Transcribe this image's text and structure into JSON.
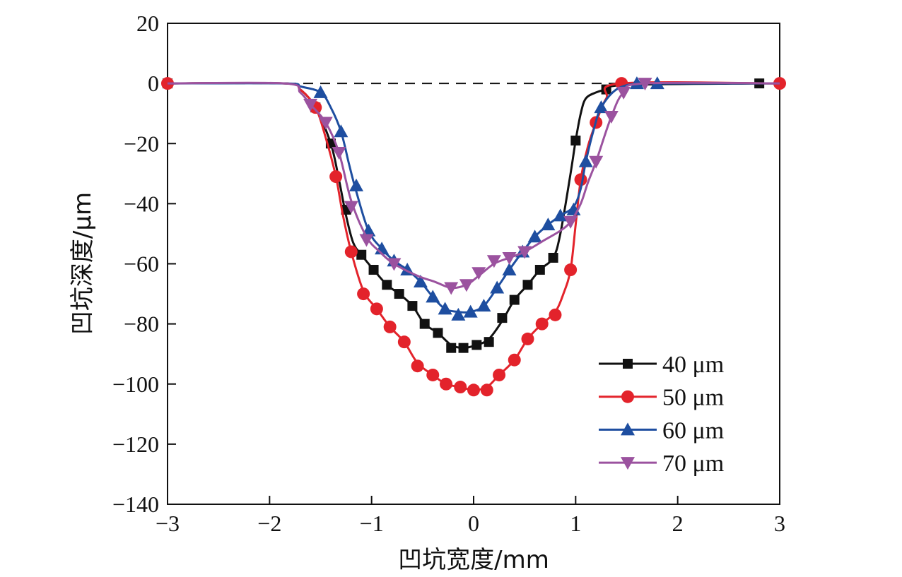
{
  "chart_data": {
    "type": "line",
    "xlabel": "凹坑宽度/mm",
    "ylabel": "凹坑深度/μm",
    "xlim": [
      -3,
      3
    ],
    "ylim": [
      -140,
      20
    ],
    "xticks": [
      -3,
      -2,
      -1,
      0,
      1,
      2,
      3
    ],
    "yticks": [
      20,
      0,
      -20,
      -40,
      -60,
      -80,
      -100,
      -120,
      -140
    ],
    "xtick_labels": [
      "−3",
      "−2",
      "−1",
      "0",
      "1",
      "2",
      "3"
    ],
    "ytick_labels": [
      "20",
      "0",
      "−20",
      "−40",
      "−60",
      "−80",
      "−100",
      "−120",
      "−140"
    ],
    "reference_line": {
      "y": 0,
      "style": "dashed"
    },
    "legend_position": "bottom-right",
    "series": [
      {
        "name": "40 μm",
        "color": "#111111",
        "marker": "square",
        "x": [
          -3.0,
          -1.55,
          -1.4,
          -1.25,
          -1.1,
          -0.98,
          -0.85,
          -0.73,
          -0.6,
          -0.48,
          -0.35,
          -0.22,
          -0.1,
          0.03,
          0.15,
          0.28,
          0.4,
          0.53,
          0.65,
          0.78,
          1.0,
          1.3,
          2.8
        ],
        "y": [
          0,
          -8,
          -20,
          -42,
          -57,
          -62,
          -67,
          -70,
          -74,
          -80,
          -83,
          -88,
          -88,
          -87,
          -86,
          -78,
          -72,
          -67,
          -62,
          -58,
          -19,
          -2,
          0
        ],
        "line_x": [
          -3.0,
          -1.85,
          -1.7,
          -1.55,
          -1.4,
          -1.32,
          -1.25,
          -1.18,
          -1.1,
          -0.98,
          -0.85,
          -0.73,
          -0.6,
          -0.48,
          -0.35,
          -0.22,
          -0.1,
          0.03,
          0.15,
          0.28,
          0.4,
          0.53,
          0.65,
          0.78,
          0.85,
          0.95,
          1.0,
          1.05,
          1.1,
          1.2,
          1.3,
          1.5,
          2.8,
          3.0
        ],
        "line_y": [
          0,
          0,
          -2,
          -8,
          -20,
          -32,
          -44,
          -53,
          -57,
          -62,
          -67,
          -70,
          -74,
          -80,
          -83,
          -87,
          -88,
          -87,
          -85,
          -79,
          -72,
          -67,
          -62,
          -58,
          -50,
          -30,
          -19,
          -10,
          -5,
          -3,
          -2,
          -0.5,
          0,
          0
        ]
      },
      {
        "name": "50 μm",
        "color": "#e3232b",
        "marker": "circle",
        "x": [
          -3.0,
          -1.55,
          -1.35,
          -1.2,
          -1.08,
          -0.95,
          -0.82,
          -0.68,
          -0.55,
          -0.4,
          -0.27,
          -0.13,
          0.0,
          0.13,
          0.25,
          0.4,
          0.53,
          0.67,
          0.8,
          0.95,
          1.05,
          1.2,
          1.45,
          3.0
        ],
        "y": [
          0,
          -8,
          -31,
          -56,
          -70,
          -75,
          -81,
          -86,
          -94,
          -97,
          -100,
          -101,
          -102,
          -102,
          -97,
          -92,
          -85,
          -80,
          -77,
          -62,
          -32,
          -13,
          0,
          0
        ],
        "line_x": [
          -3.0,
          -1.85,
          -1.7,
          -1.55,
          -1.45,
          -1.35,
          -1.28,
          -1.2,
          -1.08,
          -0.95,
          -0.82,
          -0.68,
          -0.55,
          -0.4,
          -0.27,
          -0.13,
          0.0,
          0.13,
          0.25,
          0.4,
          0.53,
          0.67,
          0.8,
          0.88,
          0.95,
          1.0,
          1.05,
          1.12,
          1.2,
          1.3,
          1.45,
          3.0
        ],
        "line_y": [
          0,
          0,
          -2,
          -8,
          -18,
          -31,
          -44,
          -56,
          -69,
          -75,
          -81,
          -86,
          -93,
          -97,
          -100,
          -101,
          -102,
          -101,
          -97,
          -92,
          -85,
          -80,
          -76,
          -70,
          -62,
          -47,
          -32,
          -21,
          -13,
          -5,
          0,
          0
        ]
      },
      {
        "name": "60 μm",
        "color": "#1e4ea0",
        "marker": "triangle-up",
        "x": [
          -1.5,
          -1.3,
          -1.15,
          -1.03,
          -0.9,
          -0.78,
          -0.65,
          -0.52,
          -0.4,
          -0.28,
          -0.15,
          -0.03,
          0.1,
          0.23,
          0.35,
          0.48,
          0.6,
          0.73,
          0.85,
          0.98,
          1.1,
          1.25,
          1.6,
          1.8
        ],
        "y": [
          -3,
          -16,
          -34,
          -49,
          -55,
          -59,
          -62,
          -66,
          -71,
          -75,
          -77,
          -76,
          -74,
          -68,
          -62,
          -56,
          -51,
          -47,
          -44,
          -42,
          -26,
          -8,
          0,
          0
        ],
        "line_x": [
          -3.0,
          -1.85,
          -1.7,
          -1.5,
          -1.4,
          -1.3,
          -1.22,
          -1.15,
          -1.03,
          -0.9,
          -0.78,
          -0.65,
          -0.52,
          -0.4,
          -0.28,
          -0.15,
          -0.03,
          0.1,
          0.23,
          0.35,
          0.48,
          0.6,
          0.73,
          0.85,
          0.98,
          1.05,
          1.1,
          1.18,
          1.25,
          1.4,
          1.6,
          1.8,
          3.0
        ],
        "line_y": [
          0,
          0,
          -1,
          -3,
          -8,
          -16,
          -27,
          -36,
          -49,
          -55,
          -59,
          -62,
          -66,
          -71,
          -75,
          -76,
          -76,
          -74,
          -68,
          -62,
          -56,
          -51,
          -47,
          -44,
          -41,
          -35,
          -26,
          -15,
          -8,
          -2,
          0,
          0,
          0
        ]
      },
      {
        "name": "70 μm",
        "color": "#9b529f",
        "marker": "triangle-down",
        "x": [
          -1.6,
          -1.45,
          -1.32,
          -1.2,
          -1.05,
          -0.78,
          -0.22,
          -0.07,
          0.05,
          0.2,
          0.35,
          0.5,
          0.95,
          1.2,
          1.35,
          1.47,
          1.68
        ],
        "y": [
          -7,
          -13,
          -23,
          -41,
          -52,
          -60,
          -68,
          -67,
          -63,
          -59,
          -58,
          -56,
          -46,
          -26,
          -11,
          -3,
          0
        ],
        "line_x": [
          -3.0,
          -1.85,
          -1.7,
          -1.6,
          -1.45,
          -1.32,
          -1.2,
          -1.05,
          -0.92,
          -0.78,
          -0.55,
          -0.38,
          -0.22,
          -0.07,
          0.05,
          0.2,
          0.35,
          0.5,
          0.7,
          0.85,
          0.95,
          1.05,
          1.12,
          1.2,
          1.35,
          1.47,
          1.68,
          3.0
        ],
        "line_y": [
          0,
          0,
          -3,
          -7,
          -13,
          -23,
          -39,
          -51,
          -56,
          -60,
          -64,
          -66,
          -68,
          -67,
          -64,
          -60,
          -58,
          -56,
          -52,
          -49,
          -46,
          -40,
          -33,
          -26,
          -11,
          -3,
          0,
          0
        ]
      }
    ]
  }
}
